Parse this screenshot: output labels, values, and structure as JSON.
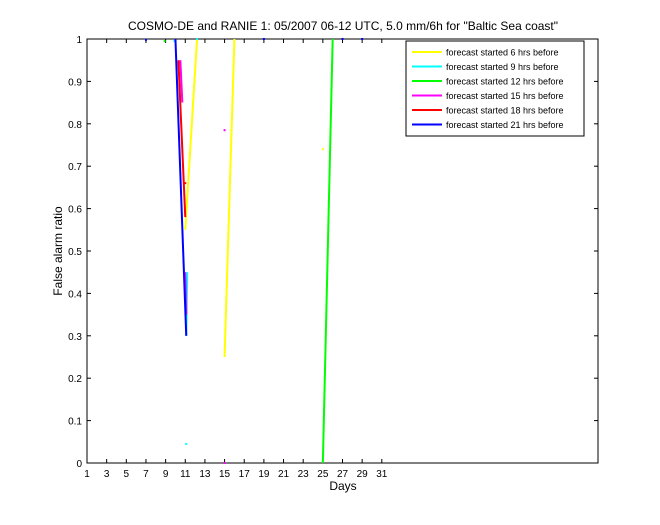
{
  "chart_data": {
    "type": "line",
    "title": "COSMO-DE and RANIE 1: 05/2007 06-12 UTC, 5.0 mm/6h for \"Baltic Sea coast\"",
    "xlabel": "Days",
    "ylabel": "False alarm ratio",
    "xlim": [
      1,
      53
    ],
    "ylim": [
      0,
      1
    ],
    "x_ticks": [
      1,
      3,
      5,
      7,
      9,
      11,
      13,
      15,
      17,
      19,
      21,
      23,
      25,
      27,
      29,
      31
    ],
    "y_ticks": [
      0,
      0.1,
      0.2,
      0.3,
      0.4,
      0.5,
      0.6,
      0.7,
      0.8,
      0.9,
      1
    ],
    "y_tick_labels": [
      "0",
      "0.1",
      "0.2",
      "0.3",
      "0.4",
      "0.5",
      "0.6",
      "0.7",
      "0.8",
      "0.9",
      "1"
    ],
    "legend_position": "top-right",
    "grid": false,
    "series": [
      {
        "name": "forecast started 6 hrs before",
        "color": "#ffff00",
        "segments": [
          [
            [
              11.0,
              0.55
            ],
            [
              12.2,
              1.0
            ]
          ],
          [
            [
              15.0,
              0.25
            ],
            [
              16.0,
              1.0
            ]
          ]
        ],
        "points": [
          [
            25.0,
            0.74
          ]
        ]
      },
      {
        "name": "forecast started 9 hrs before",
        "color": "#00ffff",
        "segments": [
          [
            [
              11.1,
              0.3
            ],
            [
              11.2,
              0.45
            ]
          ]
        ],
        "points": [
          [
            11.1,
            0.045
          ],
          [
            9.9,
            0.995
          ]
        ]
      },
      {
        "name": "forecast started 12 hrs before",
        "color": "#00ff00",
        "segments": [
          [
            [
              25.0,
              0.0
            ],
            [
              26.0,
              1.0
            ]
          ]
        ],
        "points": [
          [
            8.9,
            0.995
          ]
        ]
      },
      {
        "name": "forecast started 15 hrs before",
        "color": "#ff00ff",
        "segments": [
          [
            [
              10.5,
              0.95
            ],
            [
              10.7,
              0.85
            ]
          ],
          [
            [
              11.0,
              0.45
            ],
            [
              11.1,
              0.35
            ]
          ]
        ],
        "points": [
          [
            15.0,
            0.785
          ],
          [
            15.0,
            0.0
          ]
        ]
      },
      {
        "name": "forecast started 18 hrs before",
        "color": "#ff0000",
        "segments": [
          [
            [
              10.3,
              0.95
            ],
            [
              11.0,
              0.58
            ]
          ]
        ],
        "points": [
          [
            11.0,
            0.66
          ]
        ]
      },
      {
        "name": "forecast started 21 hrs before",
        "color": "#0000ff",
        "segments": [
          [
            [
              10.0,
              1.0
            ],
            [
              11.1,
              0.3
            ]
          ]
        ],
        "points": [
          [
            7.0,
            0.998
          ]
        ]
      }
    ],
    "top_points": [
      {
        "x": 12.2,
        "y": 1.0,
        "color": "#00ffff"
      },
      {
        "x": 19.0,
        "y": 1.0,
        "color": "#0000ff"
      },
      {
        "x": 27.0,
        "y": 1.0,
        "color": "#0000ff"
      },
      {
        "x": 29.0,
        "y": 1.0,
        "color": "#0000ff"
      }
    ]
  }
}
